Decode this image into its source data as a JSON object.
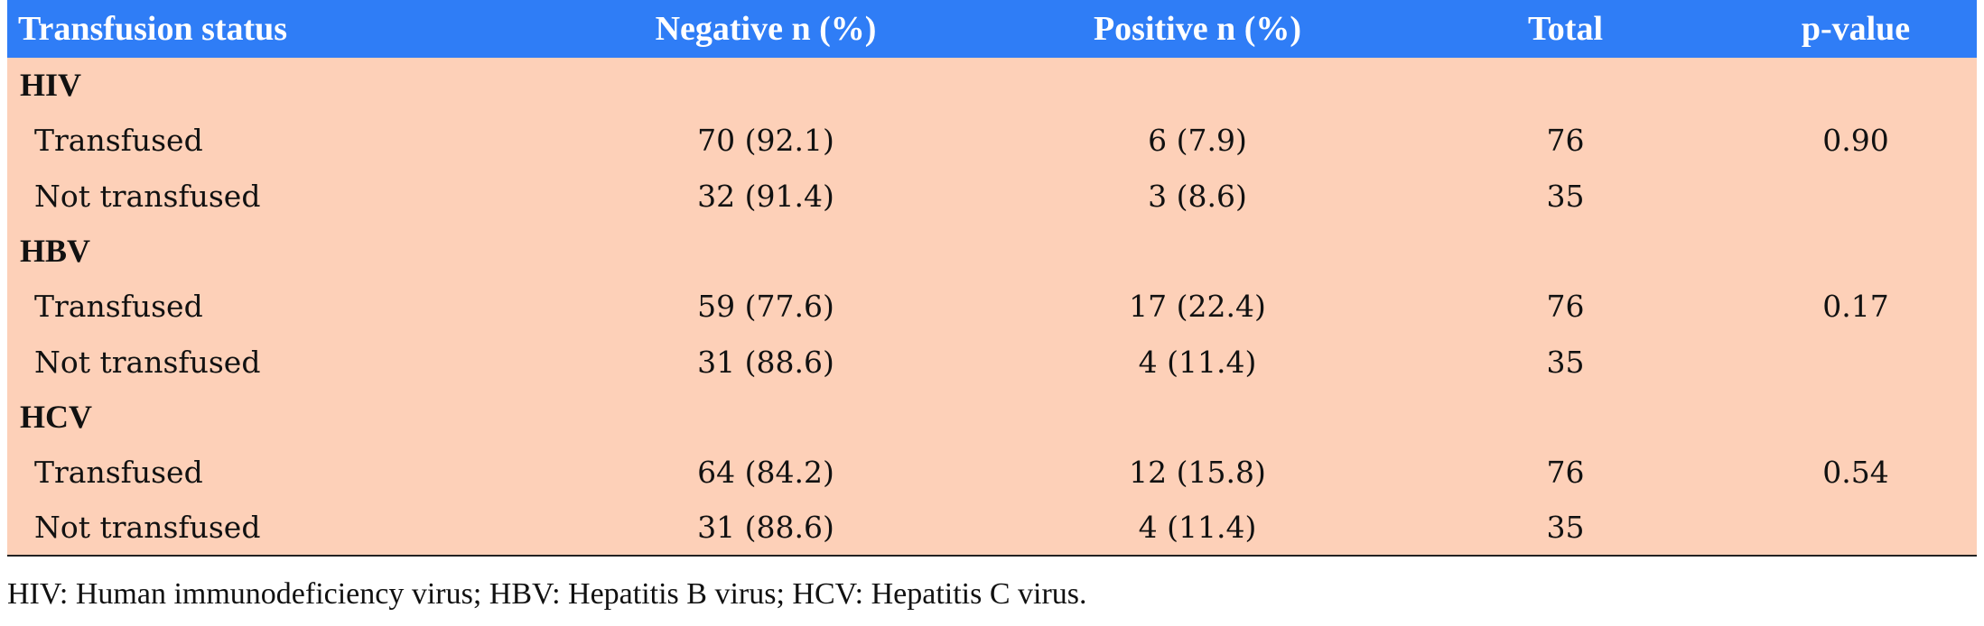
{
  "table": {
    "headers": [
      "Transfusion status",
      "Negative n (%)",
      "Positive n (%)",
      "Total",
      "p-value"
    ],
    "groups": [
      {
        "label": "HIV",
        "rows": [
          {
            "status": "Transfused",
            "negative": "70 (92.1)",
            "positive": "6 (7.9)",
            "total": "76",
            "pvalue": "0.90"
          },
          {
            "status": "Not transfused",
            "negative": "32 (91.4)",
            "positive": "3 (8.6)",
            "total": "35",
            "pvalue": ""
          }
        ]
      },
      {
        "label": "HBV",
        "rows": [
          {
            "status": "Transfused",
            "negative": "59 (77.6)",
            "positive": "17 (22.4)",
            "total": "76",
            "pvalue": "0.17"
          },
          {
            "status": "Not transfused",
            "negative": "31 (88.6)",
            "positive": "4 (11.4)",
            "total": "35",
            "pvalue": ""
          }
        ]
      },
      {
        "label": "HCV",
        "rows": [
          {
            "status": "Transfused",
            "negative": "64 (84.2)",
            "positive": "12 (15.8)",
            "total": "76",
            "pvalue": "0.54"
          },
          {
            "status": "Not transfused",
            "negative": "31 (88.6)",
            "positive": "4 (11.4)",
            "total": "35",
            "pvalue": ""
          }
        ]
      }
    ],
    "footnote": "HIV: Human immunodeficiency virus; HBV: Hepatitis B virus; HCV: Hepatitis C virus."
  },
  "colors": {
    "header_bg": "#2f7df6",
    "header_text": "#ffffff",
    "body_bg": "#fdd0b8",
    "rule": "#222222"
  }
}
